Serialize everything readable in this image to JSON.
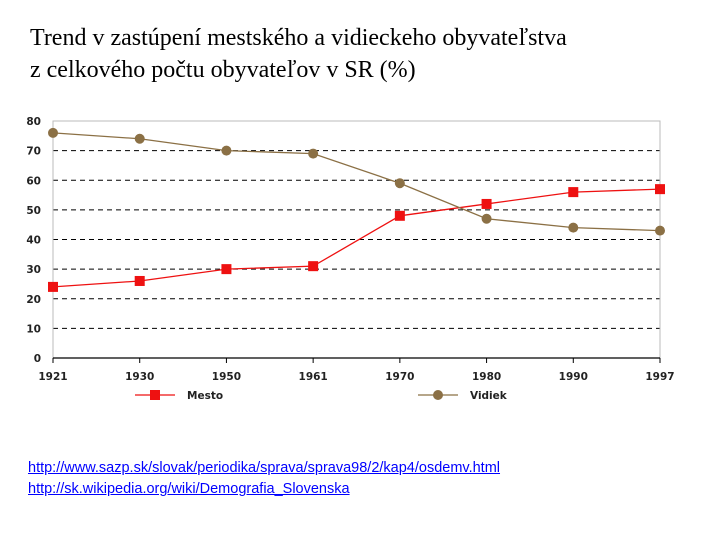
{
  "title": {
    "line1": "Trend v zastúpení mestského a vidieckeho obyvateľstva",
    "line2": "z celkového počtu obyvateľov v SR (%)"
  },
  "chart_data": {
    "type": "line",
    "title": "Trend v zastúpení mestského a vidieckeho obyvateľstva z celkového počtu obyvateľov v SR (%)",
    "categories": [
      "1921",
      "1930",
      "1950",
      "1961",
      "1970",
      "1980",
      "1990",
      "1997"
    ],
    "series": [
      {
        "name": "Mesto",
        "color": "#ee1111",
        "marker": "square",
        "values": [
          24,
          26,
          30,
          31,
          48,
          52,
          56,
          57
        ]
      },
      {
        "name": "Vidiek",
        "color": "#8b7045",
        "marker": "circle",
        "values": [
          76,
          74,
          70,
          69,
          59,
          47,
          44,
          43
        ]
      }
    ],
    "y_ticks": [
      0,
      10,
      20,
      30,
      40,
      50,
      60,
      70,
      80
    ],
    "ylim": [
      0,
      80
    ],
    "xlabel": "",
    "ylabel": "",
    "grid": true,
    "legend_position": "bottom"
  },
  "links": [
    "http://www.sazp.sk/slovak/periodika/sprava/sprava98/2/kap4/osdemv.html",
    "http://sk.wikipedia.org/wiki/Demografia_Slovenska"
  ]
}
